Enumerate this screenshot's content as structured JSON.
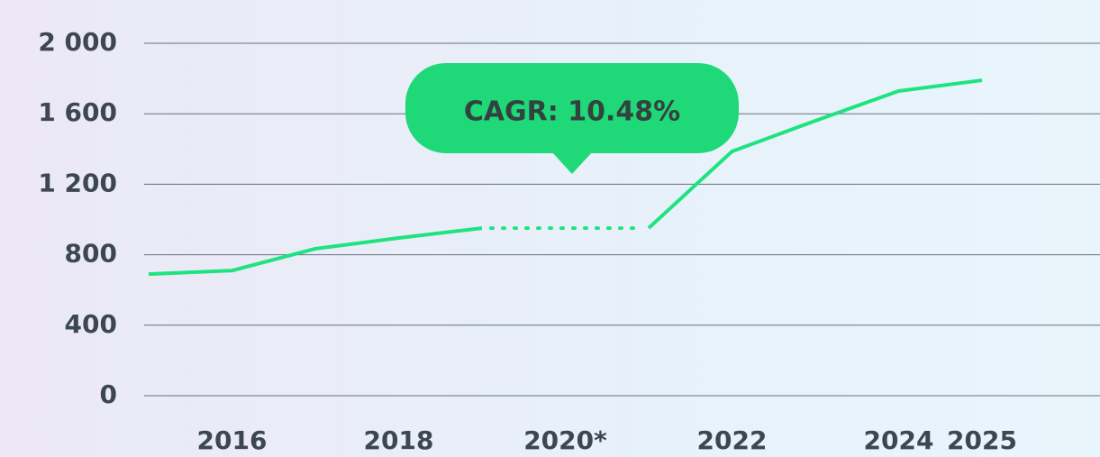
{
  "chart_data": {
    "type": "line",
    "categories": [
      null,
      "2016",
      null,
      "2018",
      null,
      "2020*",
      null,
      "2022",
      null,
      "2024",
      "2025"
    ],
    "values": [
      690,
      710,
      834,
      895,
      951,
      null,
      951,
      1386,
      1560,
      1729,
      1790
    ],
    "color": "#1ee37f",
    "ylim": [
      0,
      2000
    ],
    "yticks": [
      0,
      400,
      800,
      {
        "value": 1200,
        "label": "1 200"
      },
      {
        "value": 1600,
        "label": "1 600"
      },
      {
        "value": 2000,
        "label": "2 000"
      }
    ],
    "grid": true,
    "annotation": "CAGR: 10.48%"
  }
}
